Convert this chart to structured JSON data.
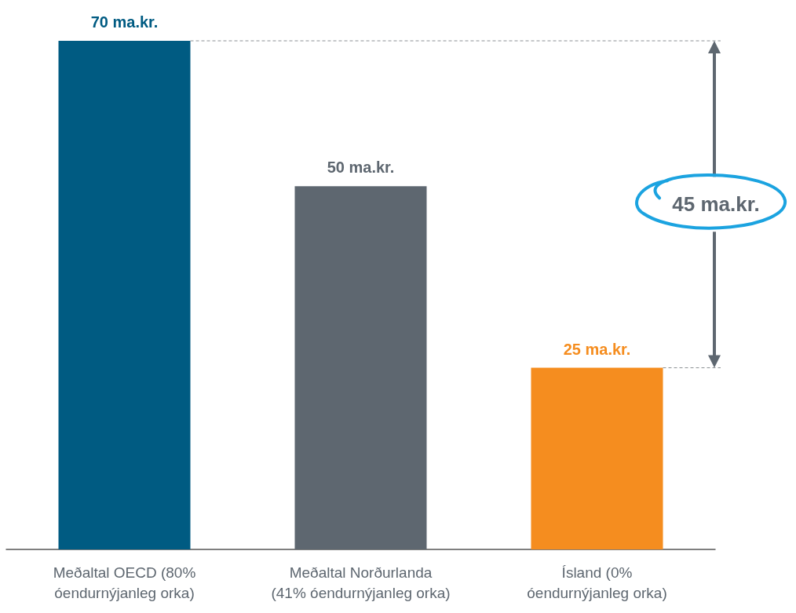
{
  "chart_data": {
    "type": "bar",
    "categories": [
      "Meðaltal OECD (80%\nóendurnýjanleg orka)",
      "Meðaltal Norðurlanda\n(41% óendurnýjanleg orka)",
      "Ísland (0%\nóendurnýjanleg orka)"
    ],
    "values": [
      70,
      50,
      25
    ],
    "colors": [
      "#005b82",
      "#5e6770",
      "#f58d1f"
    ],
    "value_labels": [
      "70 ma.kr.",
      "50 ma.kr.",
      "25 ma.kr."
    ],
    "ref_lines": [
      {
        "axis": "y",
        "value": 70,
        "line_style": "dashed",
        "color": "#8a8f94"
      },
      {
        "axis": "y",
        "value": 25,
        "line_style": "dashed",
        "color": "#8a8f94"
      }
    ],
    "annotations": [
      "45 ma.kr."
    ]
  }
}
